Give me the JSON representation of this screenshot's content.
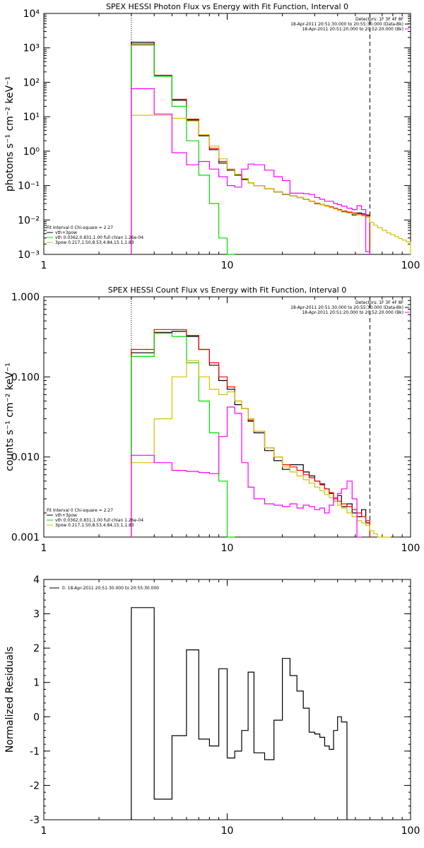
{
  "colors": {
    "black": "#000000",
    "red": "#ff0000",
    "green": "#00dd00",
    "yellow": "#d4c000",
    "magenta": "#ff00ff"
  },
  "chart_data": [
    {
      "type": "line",
      "title": "SPEX HESSI Photon Flux vs Energy with Fit Function, Interval 0",
      "xlabel": "",
      "ylabel": "photons s⁻¹ cm⁻² keV⁻¹",
      "xscale": "log",
      "yscale": "log",
      "xlim": [
        1,
        100
      ],
      "ylim": [
        0.001,
        10000
      ],
      "xticks": [
        1,
        10,
        100
      ],
      "xtick_labels": [
        "1",
        "10",
        "100"
      ],
      "yticks": [
        0.001,
        0.01,
        0.1,
        1,
        10,
        100,
        1000,
        10000
      ],
      "ytick_labels": [
        "10⁻³",
        "10⁻²",
        "10⁻¹",
        "10⁰",
        "10¹",
        "10²",
        "10³",
        "10⁴"
      ],
      "legend_top": [
        "Detectors: 1F 3F 4F 8F",
        "18-Apr-2011 20:51:30.000 to 20:55:30.000 (Data-Bk)",
        "18-Apr-2011 20:51:20.000 to 20:52:20.000 (Bk)"
      ],
      "legend_bottom": [
        "Fit Interval 0   Chi-square = 2.27",
        "vth+3pow",
        "vth 0.0362,0.831,1.00  full chian 1.26e-04",
        "3pow 0.217,1.50,8.53,4.84,15.1,1.83"
      ],
      "vlines": [
        {
          "x": 3,
          "style": "dotted"
        },
        {
          "x": 60,
          "style": "dashed"
        }
      ],
      "edges": [
        3,
        4,
        5,
        6,
        7,
        8,
        9,
        10,
        11,
        12,
        13,
        14,
        16,
        18,
        20,
        22,
        24,
        26,
        28,
        30,
        32,
        34,
        36,
        38,
        40,
        42,
        45,
        48,
        51,
        54,
        57,
        60,
        63,
        66,
        70,
        74,
        78,
        82,
        86,
        90,
        95,
        100
      ],
      "series": [
        {
          "color": "black",
          "values": [
            1450,
            155,
            30,
            8,
            2.8,
            1.1,
            0.45,
            0.28,
            0.2,
            0.15,
            0.12,
            0.1,
            0.08,
            0.065,
            0.055,
            0.05,
            0.045,
            0.04,
            0.035,
            0.03,
            0.028,
            0.026,
            0.024,
            0.022,
            0.02,
            0.018,
            0.016,
            0.014,
            0.016,
            0.015,
            0.014
          ]
        },
        {
          "color": "red",
          "values": [
            1300,
            160,
            32,
            8.5,
            2.9,
            1.2,
            0.5,
            0.3,
            0.21,
            0.16,
            0.12,
            0.1,
            0.08,
            0.066,
            0.056,
            0.05,
            0.045,
            0.04,
            0.035,
            0.031,
            0.028,
            0.026,
            0.024,
            0.022,
            0.02,
            0.018,
            0.017,
            0.016,
            0.015,
            0.014,
            0.013
          ]
        },
        {
          "color": "green",
          "values": [
            1200,
            150,
            20,
            2,
            0.2,
            0.03,
            0.003,
            0.0004
          ]
        },
        {
          "color": "yellow",
          "values": [
            11,
            11,
            9,
            7.5,
            3,
            1.4,
            0.6,
            0.3,
            0.21,
            0.16,
            0.12,
            0.1,
            0.08,
            0.066,
            0.056,
            0.05,
            0.045,
            0.04,
            0.035,
            0.031,
            0.028,
            0.025,
            0.023,
            0.021,
            0.019,
            0.017,
            0.016,
            0.015,
            0.014,
            0.013,
            0.012,
            0.0085,
            0.007,
            0.006,
            0.005,
            0.0042,
            0.0037,
            0.0033,
            0.0029,
            0.0026,
            0.0023
          ]
        },
        {
          "color": "magenta",
          "values": [
            65,
            12,
            0.9,
            0.4,
            0.5,
            0.3,
            0.18,
            0.1,
            0.09,
            0.3,
            0.42,
            0.4,
            0.28,
            0.18,
            0.14,
            0.06,
            0.06,
            0.058,
            0.055,
            0.045,
            0.04,
            0.035,
            0.035,
            0.03,
            0.028,
            0.025,
            0.022,
            0.02,
            0.026,
            0.02,
            0.0012
          ]
        }
      ]
    },
    {
      "type": "line",
      "title": "SPEX HESSI Count Flux vs Energy with Fit Function, Interval 0",
      "xlabel": "",
      "ylabel": "counts s⁻¹ cm⁻² keV⁻¹",
      "xscale": "log",
      "yscale": "log",
      "xlim": [
        1,
        100
      ],
      "ylim": [
        0.001,
        1
      ],
      "xticks": [
        1,
        10,
        100
      ],
      "xtick_labels": [
        "1",
        "10",
        "100"
      ],
      "yticks": [
        0.001,
        0.01,
        0.1,
        1
      ],
      "ytick_labels": [
        "0.001",
        "0.010",
        "0.100",
        "1.000"
      ],
      "legend_top": [
        "Detectors: 1F 3F 4F 8F",
        "18-Apr-2011 20:51:30.000 to 20:55:30.000 (Data-Bk)",
        "18-Apr-2011 20:51:20.000 to 20:52:20.000 (Bk)"
      ],
      "legend_bottom": [
        "Fit Interval 0   Chi-square = 2.27",
        "vth+3pow",
        "vth 0.0362,0.831,1.00  full chian 1.26e-04",
        "3pow 0.217,1.50,8.53,4.84,15.1,1.83"
      ],
      "vlines": [
        {
          "x": 3,
          "style": "dotted"
        },
        {
          "x": 60,
          "style": "dashed"
        }
      ],
      "edges": [
        3,
        4,
        5,
        6,
        7,
        8,
        9,
        10,
        11,
        12,
        13,
        14,
        16,
        18,
        20,
        22,
        24,
        26,
        28,
        30,
        32,
        34,
        36,
        38,
        40,
        42,
        45,
        48,
        51,
        54,
        57,
        60,
        63,
        66,
        70,
        74,
        78,
        82,
        86,
        90,
        95,
        100
      ],
      "series": [
        {
          "color": "black",
          "values": [
            0.2,
            0.36,
            0.37,
            0.32,
            0.22,
            0.14,
            0.09,
            0.07,
            0.045,
            0.04,
            0.028,
            0.02,
            0.012,
            0.009,
            0.007,
            0.008,
            0.008,
            0.0065,
            0.0058,
            0.005,
            0.0046,
            0.004,
            0.0035,
            0.0028,
            0.0033,
            0.0024,
            0.0026,
            0.002,
            0.0018,
            0.0022,
            0.0015
          ]
        },
        {
          "color": "red",
          "values": [
            0.22,
            0.39,
            0.39,
            0.33,
            0.22,
            0.15,
            0.1,
            0.075,
            0.05,
            0.04,
            0.029,
            0.021,
            0.013,
            0.01,
            0.008,
            0.0075,
            0.0068,
            0.006,
            0.0055,
            0.005,
            0.0045,
            0.004,
            0.0036,
            0.003,
            0.0028,
            0.0026,
            0.0024,
            0.0022,
            0.002,
            0.0018,
            0.0016
          ]
        },
        {
          "color": "green",
          "values": [
            0.18,
            0.35,
            0.32,
            0.15,
            0.05,
            0.02,
            0.005,
            0.0009
          ]
        },
        {
          "color": "yellow",
          "values": [
            0.0085,
            0.03,
            0.1,
            0.16,
            0.1,
            0.07,
            0.06,
            0.065,
            0.05,
            0.04,
            0.03,
            0.021,
            0.013,
            0.01,
            0.0075,
            0.0065,
            0.0058,
            0.0052,
            0.0047,
            0.0042,
            0.0038,
            0.0034,
            0.0031,
            0.0028,
            0.0025,
            0.0023,
            0.002,
            0.0018,
            0.0016,
            0.0015,
            0.0014,
            0.0012,
            0.0011,
            0.001,
            0.001,
            0.00095
          ]
        },
        {
          "color": "magenta",
          "values": [
            0.0105,
            0.0085,
            0.0068,
            0.0066,
            0.0064,
            0.0062,
            0.018,
            0.042,
            0.035,
            0.0085,
            0.0042,
            0.003,
            0.0026,
            0.0025,
            0.0024,
            0.0026,
            0.0023,
            0.0025,
            0.0024,
            0.0022,
            0.0023,
            0.002,
            0.0025,
            0.0031,
            0.0035,
            0.004,
            0.005,
            0.003,
            0.0008
          ]
        }
      ]
    },
    {
      "type": "line",
      "title": "",
      "xlabel": "",
      "ylabel": "Normalized Residuals",
      "xscale": "log",
      "yscale": "linear",
      "xlim": [
        1,
        100
      ],
      "ylim": [
        -3,
        4
      ],
      "xticks": [
        1,
        10,
        100
      ],
      "xtick_labels": [
        "1",
        "10",
        "100"
      ],
      "yticks": [
        -3,
        -2,
        -1,
        0,
        1,
        2,
        3,
        4
      ],
      "ytick_labels": [
        "-3",
        "-2",
        "-1",
        "0",
        "1",
        "2",
        "3",
        "4"
      ],
      "legend_top": [
        "0. 18-Apr-2011 20:51:30.000 to 20:55:30.000"
      ],
      "legend_bottom": [],
      "vlines": [],
      "edges": [
        3,
        4,
        5,
        6,
        7,
        8,
        9,
        10,
        11,
        12,
        13,
        14,
        16,
        18,
        20,
        22,
        24,
        26,
        28,
        30,
        32,
        34,
        36,
        38,
        40,
        42,
        45,
        48,
        51,
        54,
        57,
        60
      ],
      "series": [
        {
          "color": "black",
          "values": [
            3.18,
            -2.4,
            -0.55,
            1.95,
            -0.65,
            -0.85,
            1.4,
            -1.2,
            -1.0,
            -0.4,
            1.3,
            -1.05,
            -1.25,
            -0.1,
            1.7,
            1.2,
            0.75,
            0.25,
            -0.45,
            -0.5,
            -0.6,
            -0.85,
            -0.95,
            -0.4,
            0.0,
            -0.15
          ]
        }
      ]
    }
  ]
}
